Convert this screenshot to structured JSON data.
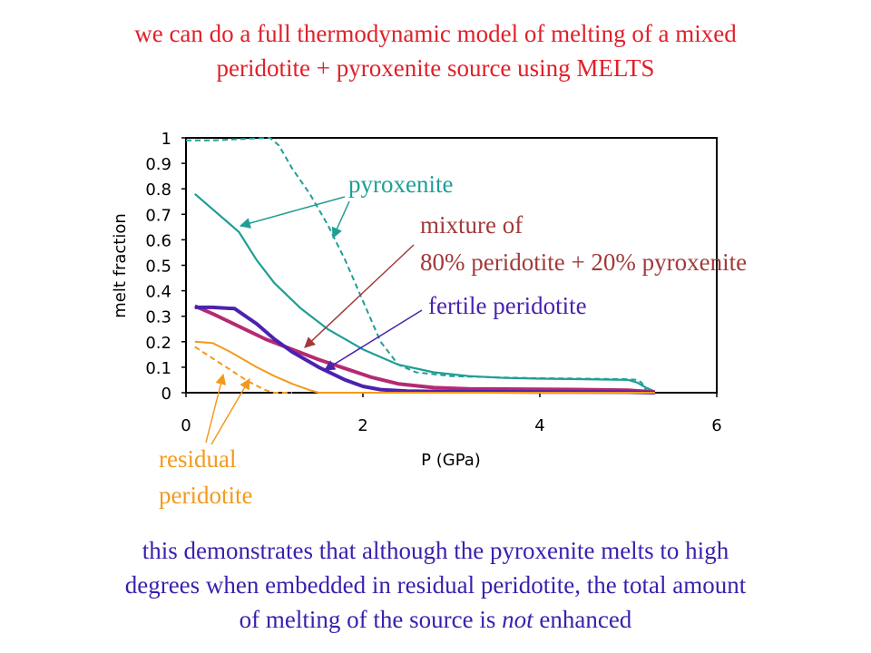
{
  "slide": {
    "title_line1": "we can do a full thermodynamic model of melting of a mixed",
    "title_line2": "peridotite + pyroxenite source using MELTS",
    "footer_line1": "this demonstrates that although the pyroxenite melts to high",
    "footer_line2": "degrees when embedded in residual peridotite, the total amount",
    "footer_line3_pre": "of melting of the source is ",
    "footer_line3_em": "not",
    "footer_line3_post": " enhanced"
  },
  "chart_data": {
    "type": "line",
    "xlabel": "P (GPa)",
    "ylabel": "melt fraction",
    "xlim": [
      0,
      6
    ],
    "ylim": [
      0,
      1
    ],
    "x_ticks": [
      "0",
      "2",
      "4",
      "6"
    ],
    "y_ticks": [
      "0",
      "0.1",
      "0.2",
      "0.3",
      "0.4",
      "0.5",
      "0.6",
      "0.7",
      "0.8",
      "0.9",
      "1"
    ],
    "grid": false,
    "annotations": {
      "pyroxenite": "pyroxenite",
      "mixture_line1": "mixture of",
      "mixture_line2": "80% peridotite + 20% pyroxenite",
      "fertile": "fertile peridotite",
      "residual_line1": "residual",
      "residual_line2": "peridotite"
    },
    "colors": {
      "pyroxenite": "#1f9e96",
      "mixture": "#b52a72",
      "fertile": "#4b22b0",
      "residual": "#f39a1d",
      "mixture_label": "#a23a3a",
      "title": "#e0202a",
      "footer": "#3a1fae"
    },
    "series": [
      {
        "key": "pyroxenite_dashed",
        "style": "dashed",
        "color": "#1f9e96",
        "x": [
          0.0,
          0.3,
          0.6,
          0.95,
          1.05,
          1.2,
          1.4,
          1.6,
          1.8,
          2.0,
          2.2,
          2.4,
          2.6,
          3.0,
          3.5,
          4.0,
          4.5,
          5.0,
          5.1,
          5.15,
          5.2,
          5.3
        ],
        "y": [
          0.99,
          0.99,
          0.995,
          1.0,
          0.97,
          0.88,
          0.78,
          0.66,
          0.52,
          0.36,
          0.2,
          0.11,
          0.08,
          0.065,
          0.06,
          0.057,
          0.055,
          0.053,
          0.05,
          0.04,
          0.01,
          0.005
        ]
      },
      {
        "key": "pyroxenite_solid",
        "style": "solid",
        "color": "#1f9e96",
        "x": [
          0.1,
          0.3,
          0.5,
          0.6,
          0.8,
          1.0,
          1.3,
          1.6,
          2.0,
          2.4,
          2.8,
          3.2,
          3.6,
          4.0,
          4.5,
          5.0,
          5.1,
          5.2,
          5.3
        ],
        "y": [
          0.78,
          0.72,
          0.66,
          0.63,
          0.52,
          0.43,
          0.33,
          0.25,
          0.17,
          0.11,
          0.08,
          0.065,
          0.058,
          0.055,
          0.053,
          0.05,
          0.04,
          0.02,
          0.005
        ]
      },
      {
        "key": "mixture",
        "style": "solid",
        "color": "#b52a72",
        "x": [
          0.1,
          0.3,
          0.6,
          0.9,
          1.2,
          1.5,
          1.8,
          2.1,
          2.4,
          2.8,
          3.2,
          4.0,
          4.5,
          5.0,
          5.2,
          5.3
        ],
        "y": [
          0.34,
          0.31,
          0.26,
          0.21,
          0.17,
          0.13,
          0.095,
          0.06,
          0.035,
          0.02,
          0.015,
          0.013,
          0.012,
          0.01,
          0.005,
          0.002
        ]
      },
      {
        "key": "fertile",
        "style": "solid",
        "color": "#4b22b0",
        "x": [
          0.1,
          0.3,
          0.55,
          0.8,
          1.0,
          1.2,
          1.5,
          1.8,
          2.0,
          2.2,
          2.5,
          3.0,
          4.0,
          5.0,
          5.3
        ],
        "y": [
          0.335,
          0.335,
          0.33,
          0.27,
          0.21,
          0.16,
          0.1,
          0.05,
          0.025,
          0.012,
          0.006,
          0.004,
          0.003,
          0.002,
          0.0
        ]
      },
      {
        "key": "residual_solid",
        "style": "solid",
        "color": "#f39a1d",
        "x": [
          0.1,
          0.3,
          0.5,
          0.8,
          1.0,
          1.2,
          1.4,
          1.5,
          2.0,
          3.0,
          4.0,
          5.0,
          5.3
        ],
        "y": [
          0.2,
          0.195,
          0.16,
          0.1,
          0.065,
          0.035,
          0.01,
          0.0,
          0.0,
          0.0,
          0.0,
          0.0,
          0.0
        ]
      },
      {
        "key": "residual_dashed",
        "style": "dashed",
        "color": "#f39a1d",
        "x": [
          0.1,
          0.3,
          0.5,
          0.7,
          0.9,
          1.0,
          1.2
        ],
        "y": [
          0.18,
          0.135,
          0.09,
          0.045,
          0.01,
          0.0,
          0.0
        ]
      }
    ]
  }
}
